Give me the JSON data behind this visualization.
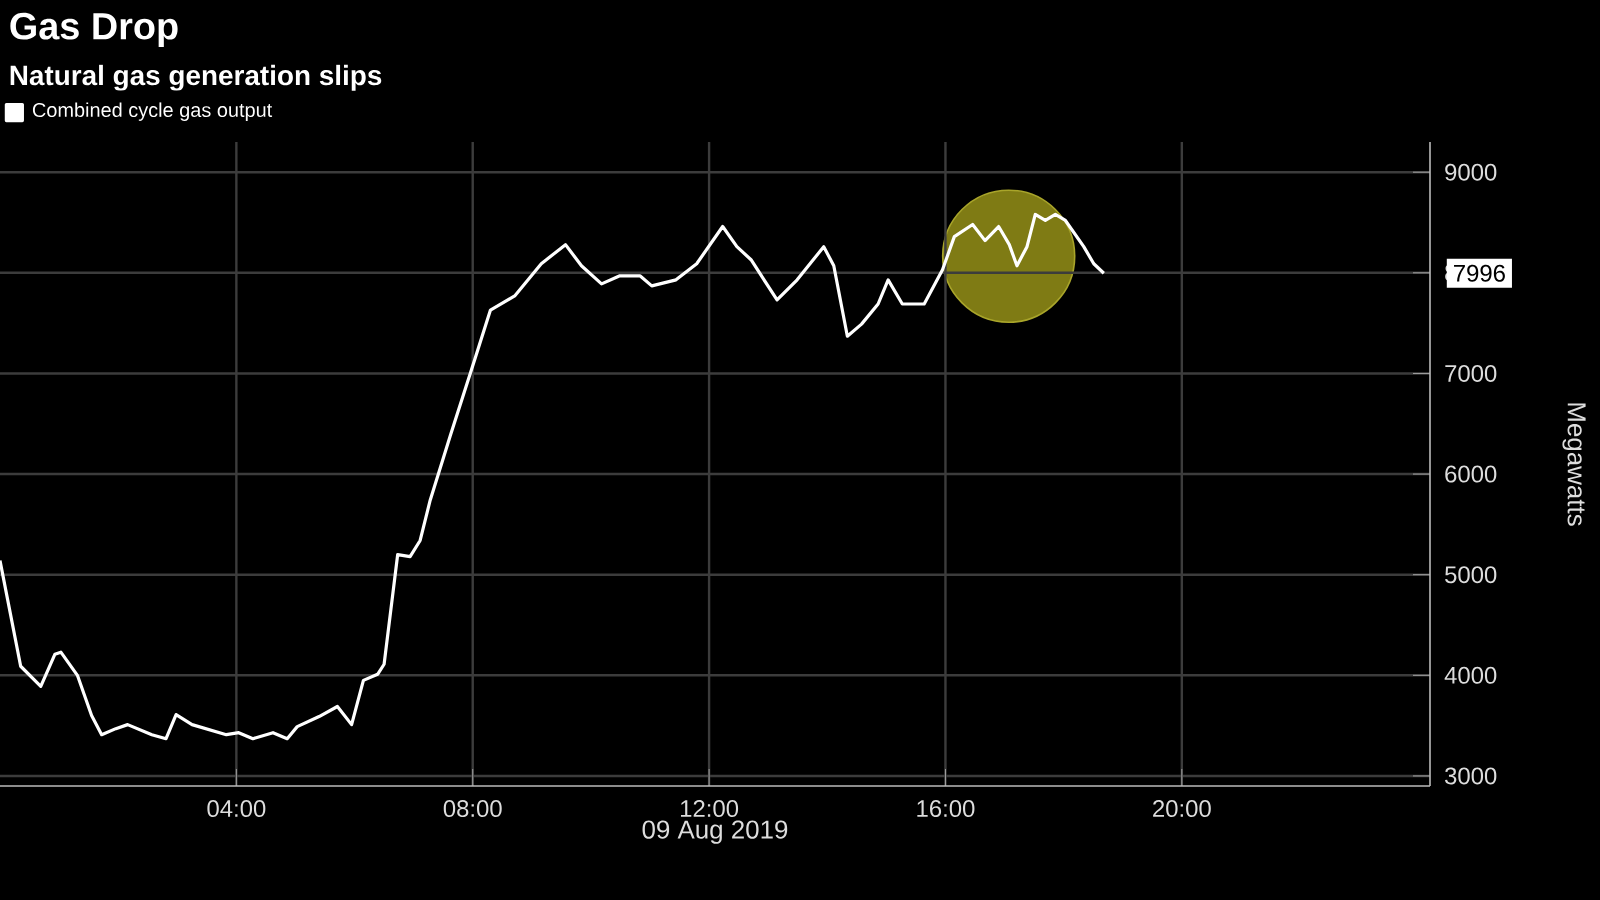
{
  "chart_data": {
    "type": "line",
    "title": "Gas Drop",
    "subtitle": "Natural gas generation slips",
    "xlabel": "09 Aug 2019",
    "ylabel": "Megawatts",
    "series": [
      {
        "name": "Combined cycle gas output",
        "color": "#ffffff",
        "x": [
          0,
          0.35,
          0.69,
          0.93,
          1.03,
          1.31,
          1.55,
          1.72,
          1.96,
          2.16,
          2.57,
          2.81,
          2.98,
          3.25,
          3.83,
          4.04,
          4.28,
          4.62,
          4.86,
          5.03,
          5.4,
          5.71,
          5.95,
          6.15,
          6.39,
          6.5,
          6.73,
          6.94,
          7.11,
          7.28,
          7.62,
          8.03,
          8.3,
          8.71,
          9.16,
          9.57,
          9.84,
          10.18,
          10.49,
          10.83,
          11.03,
          11.44,
          11.79,
          12.23,
          12.47,
          12.71,
          13.15,
          13.49,
          13.94,
          14.11,
          14.34,
          14.58,
          14.86,
          15.03,
          15.27,
          15.64,
          15.95,
          16.15,
          16.46,
          16.67,
          16.9,
          17.08,
          17.21,
          17.38,
          17.52,
          17.69,
          17.86,
          18.03,
          18.34,
          18.51,
          18.68
        ],
        "values": [
          5140,
          4090,
          3890,
          4210,
          4230,
          4000,
          3600,
          3410,
          3470,
          3510,
          3410,
          3370,
          3610,
          3510,
          3410,
          3430,
          3370,
          3430,
          3370,
          3490,
          3590,
          3690,
          3510,
          3950,
          4010,
          4110,
          5200,
          5180,
          5340,
          5740,
          6380,
          7130,
          7630,
          7770,
          8090,
          8280,
          8070,
          7890,
          7970,
          7970,
          7870,
          7930,
          8090,
          8460,
          8260,
          8130,
          7730,
          7930,
          8260,
          8070,
          7370,
          7490,
          7690,
          7930,
          7690,
          7690,
          8030,
          8360,
          8480,
          8320,
          8460,
          8280,
          8070,
          8260,
          8580,
          8520,
          8580,
          8520,
          8260,
          8090,
          7996
        ]
      }
    ],
    "xlim": [
      0,
      24.2
    ],
    "ylim": [
      2900,
      9300
    ],
    "xticks": [
      {
        "value": 4,
        "label": "04:00"
      },
      {
        "value": 8,
        "label": "08:00"
      },
      {
        "value": 12,
        "label": "12:00"
      },
      {
        "value": 16,
        "label": "16:00"
      },
      {
        "value": 20,
        "label": "20:00"
      }
    ],
    "yticks": [
      3000,
      4000,
      5000,
      6000,
      7000,
      8000,
      9000
    ],
    "annotations": [
      "7996"
    ],
    "grid": true,
    "legend": "top left",
    "marker": "none",
    "line_style": "solid"
  }
}
